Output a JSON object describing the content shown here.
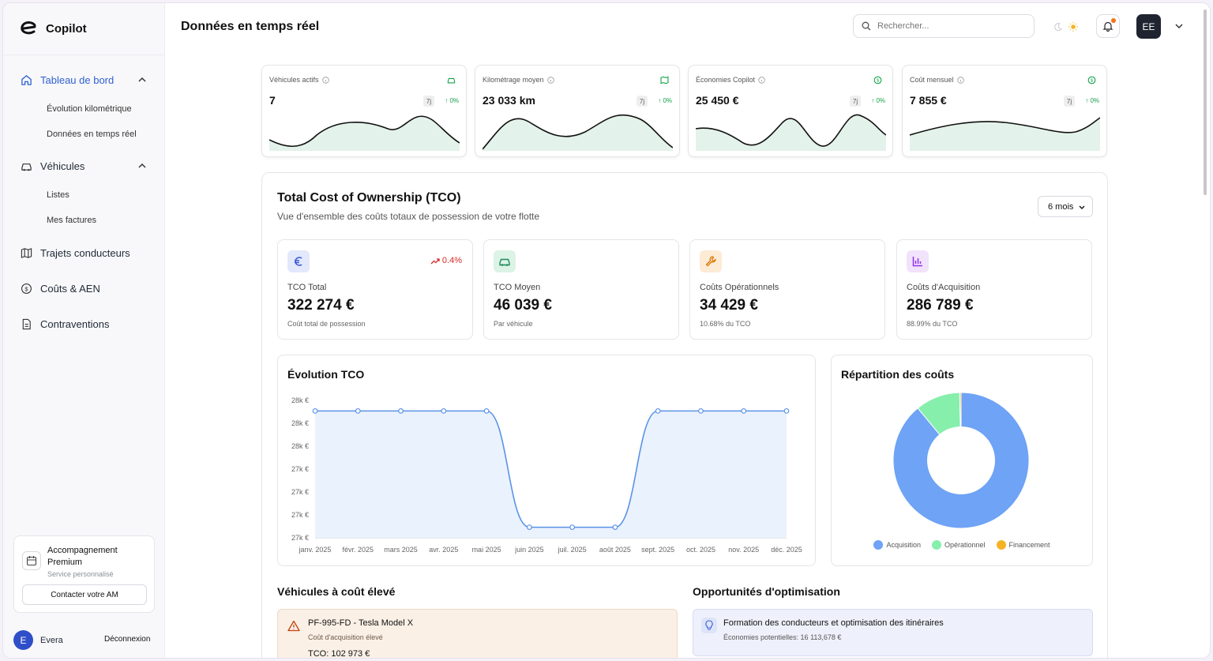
{
  "app": {
    "name": "Copilot"
  },
  "sidebar": {
    "sections": [
      {
        "label": "Tableau de bord",
        "icon": "home-icon",
        "active": true,
        "expanded": true,
        "children": [
          "Évolution kilométrique",
          "Données en temps réel"
        ]
      },
      {
        "label": "Véhicules",
        "icon": "car-icon",
        "active": false,
        "expanded": true,
        "children": [
          "Listes",
          "Mes factures"
        ]
      },
      {
        "label": "Trajets conducteurs",
        "icon": "map-icon"
      },
      {
        "label": "Coûts & AEN",
        "icon": "dollar-icon"
      },
      {
        "label": "Contraventions",
        "icon": "document-icon"
      }
    ],
    "premium": {
      "title": "Accompagnement Premium",
      "subtitle": "Service personnalisé",
      "button": "Contacter votre AM"
    },
    "user": {
      "initial": "E",
      "name": "Evera",
      "logout": "Déconnexion"
    }
  },
  "header": {
    "title": "Données en temps réel",
    "search_placeholder": "Rechercher...",
    "avatar": "EE"
  },
  "kpis": [
    {
      "label": "Véhicules actifs",
      "value": "7",
      "period": "7j",
      "change": "0%",
      "icon": "car-icon"
    },
    {
      "label": "Kilométrage moyen",
      "value": "23 033 km",
      "period": "7j",
      "change": "0%",
      "icon": "map-icon"
    },
    {
      "label": "Économies Copilot",
      "value": "25 450 €",
      "period": "7j",
      "change": "0%",
      "icon": "dollar-icon"
    },
    {
      "label": "Coût mensuel",
      "value": "7 855 €",
      "period": "7j",
      "change": "0%",
      "icon": "dollar-icon"
    }
  ],
  "tco": {
    "title": "Total Cost of Ownership (TCO)",
    "subtitle": "Vue d'ensemble des coûts totaux de possession de votre flotte",
    "period": "6 mois",
    "stats": [
      {
        "label": "TCO Total",
        "value": "322 274 €",
        "note": "Coût total de possession",
        "trend": "0.4%",
        "icon": "euro-icon",
        "color": "#3b5bd6",
        "bg": "#e3e8fb"
      },
      {
        "label": "TCO Moyen",
        "value": "46 039 €",
        "note": "Par véhicule",
        "icon": "car-icon",
        "color": "#1f8a5b",
        "bg": "#dcf3e6"
      },
      {
        "label": "Coûts Opérationnels",
        "value": "34 429 €",
        "note": "10.68% du TCO",
        "icon": "wrench-icon",
        "color": "#d97706",
        "bg": "#fdebd6"
      },
      {
        "label": "Coûts d'Acquisition",
        "value": "286 789 €",
        "note": "88.99% du TCO",
        "icon": "bar-chart-icon",
        "color": "#9333ea",
        "bg": "#f1e3fb"
      }
    ],
    "evolution_title": "Évolution TCO",
    "repartition_title": "Répartition des coûts",
    "high_cost_title": "Véhicules à coût élevé",
    "optimization_title": "Opportunités d'optimisation",
    "vehicle": {
      "name": "PF-995-FD - Tesla Model X",
      "reason": "Coût d'acquisition élevé",
      "tco": "TCO: 102 973 €"
    },
    "optimization": {
      "name": "Formation des conducteurs et optimisation des itinéraires",
      "savings": "Économies potentielles: 16 113,678 €"
    }
  },
  "chart_data": [
    {
      "type": "line",
      "title": "Évolution TCO",
      "x": [
        "janv. 2025",
        "févr. 2025",
        "mars 2025",
        "avr. 2025",
        "mai 2025",
        "juin 2025",
        "juil. 2025",
        "août 2025",
        "sept. 2025",
        "oct. 2025",
        "nov. 2025",
        "déc. 2025"
      ],
      "values": [
        28.0,
        28.0,
        28.0,
        28.0,
        28.0,
        26.9,
        26.9,
        26.9,
        28.0,
        28.0,
        28.0,
        28.0
      ],
      "y_ticks": [
        "28k €",
        "28k €",
        "28k €",
        "27k €",
        "27k €",
        "27k €",
        "27k €"
      ],
      "ylim": [
        26.8,
        28.1
      ],
      "color": "#5b93e6",
      "fill": "#eaf2fd"
    },
    {
      "type": "pie",
      "title": "Répartition des coûts",
      "donut": true,
      "slices": [
        {
          "name": "Acquisition",
          "value": 88.99,
          "color": "#6ea3f5"
        },
        {
          "name": "Opérationnel",
          "value": 10.68,
          "color": "#86efac"
        },
        {
          "name": "Financement",
          "value": 0.33,
          "color": "#f5b324"
        }
      ]
    }
  ]
}
